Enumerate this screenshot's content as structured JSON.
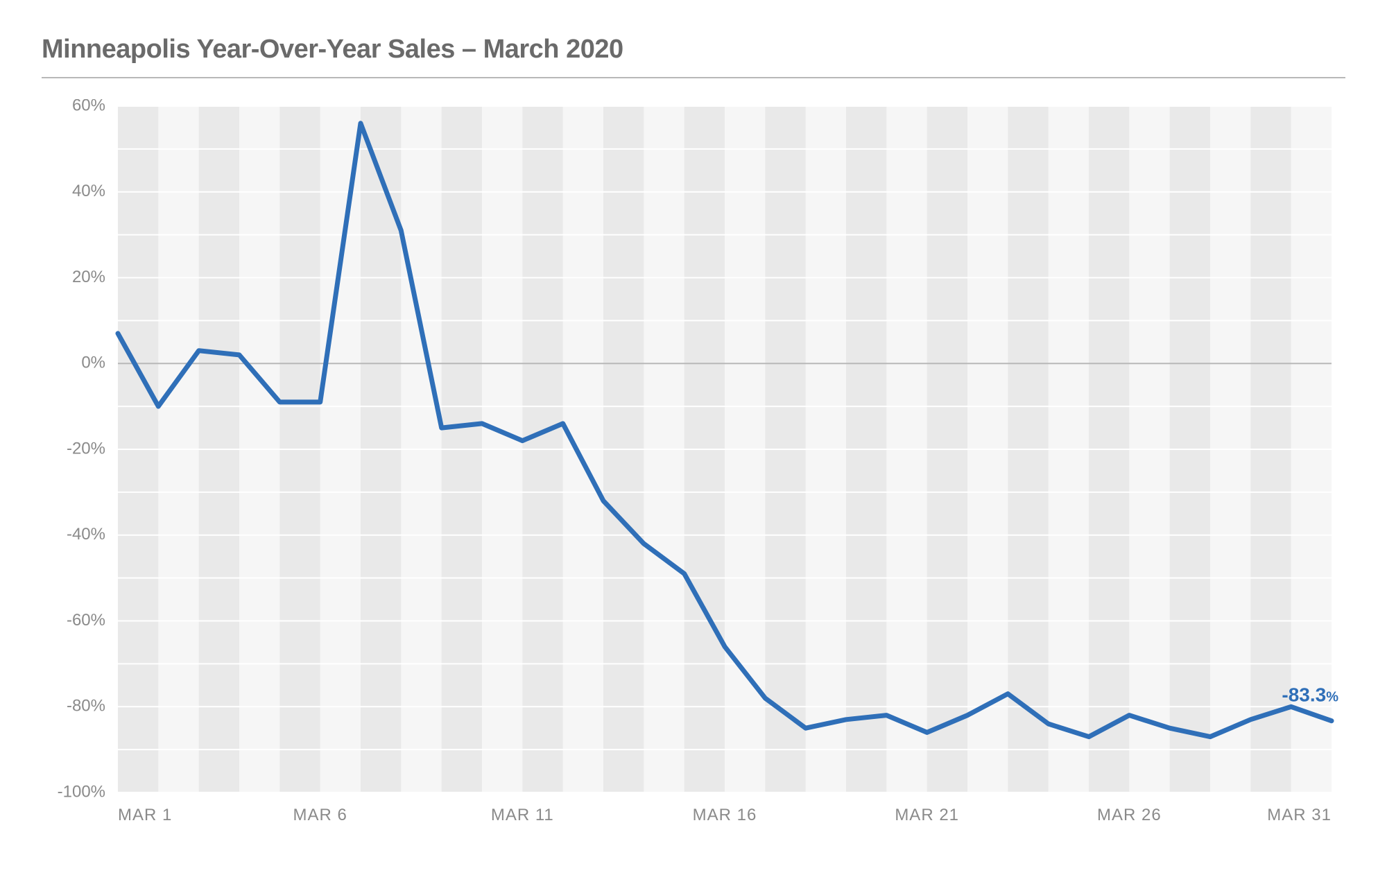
{
  "chart": {
    "type": "line",
    "title": "Minneapolis Year-Over-Year Sales – March 2020",
    "title_color": "#6a6a6a",
    "title_fontsize": 38,
    "background_color": "#ffffff",
    "plot_background_color": "#f6f6f6",
    "stripe_color": "#e9e9e9",
    "grid_minor_color": "#ffffff",
    "grid_zero_color": "#b8b8b8",
    "axis_label_color": "#8a8a8a",
    "axis_fontsize": 24,
    "line_color": "#2f6fb8",
    "line_width": 7,
    "end_label_text": "-83.3",
    "end_label_suffix": "%",
    "end_label_color": "#2f6fb8",
    "end_label_fontsize": 28,
    "x": {
      "min": 1,
      "max": 31,
      "ticks": [
        {
          "day": 1,
          "label": "MAR 1"
        },
        {
          "day": 6,
          "label": "MAR 6"
        },
        {
          "day": 11,
          "label": "MAR 11"
        },
        {
          "day": 16,
          "label": "MAR 16"
        },
        {
          "day": 21,
          "label": "MAR 21"
        },
        {
          "day": 26,
          "label": "MAR 26"
        },
        {
          "day": 31,
          "label": "MAR 31"
        }
      ]
    },
    "y": {
      "min": -100,
      "max": 60,
      "tick_step": 20,
      "minor_step": 10,
      "ticks": [
        60,
        40,
        20,
        0,
        -20,
        -40,
        -60,
        -80,
        -100
      ],
      "label_suffix": "%"
    },
    "series": [
      {
        "name": "yoy_sales",
        "values": [
          7,
          -10,
          3,
          2,
          -9,
          -9,
          56,
          31,
          -15,
          -14,
          -18,
          -14,
          -32,
          -42,
          -49,
          -66,
          -78,
          -85,
          -83,
          -82,
          -86,
          -82,
          -77,
          -84,
          -87,
          -82,
          -85,
          -87,
          -83,
          -80,
          -83.3
        ]
      }
    ]
  }
}
